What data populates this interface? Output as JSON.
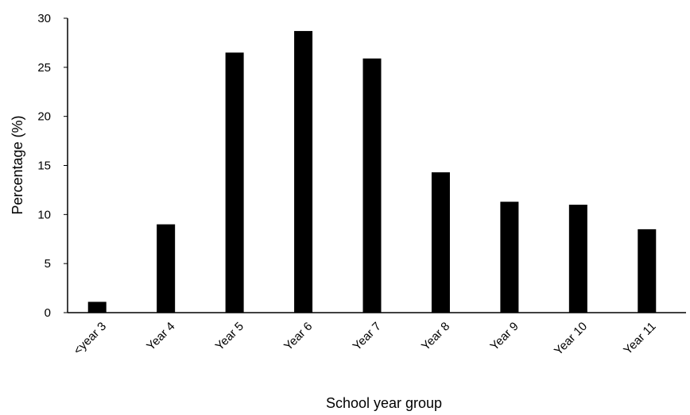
{
  "chart_data": {
    "type": "bar",
    "title": "",
    "xlabel": "School year group",
    "ylabel": "Percentage (%)",
    "categories": [
      "<year 3",
      "Year 4",
      "Year 5",
      "Year 6",
      "Year 7",
      "Year 8",
      "Year 9",
      "Year 10",
      "Year 11"
    ],
    "values": [
      1.1,
      9.0,
      26.5,
      28.7,
      25.9,
      14.3,
      11.3,
      11.0,
      8.5
    ],
    "ylim": [
      0,
      30
    ],
    "yticks": [
      0,
      5,
      10,
      15,
      20,
      25,
      30
    ],
    "grid": false,
    "legend": "none",
    "bar_color": "#000000",
    "axis_color": "#000000"
  }
}
